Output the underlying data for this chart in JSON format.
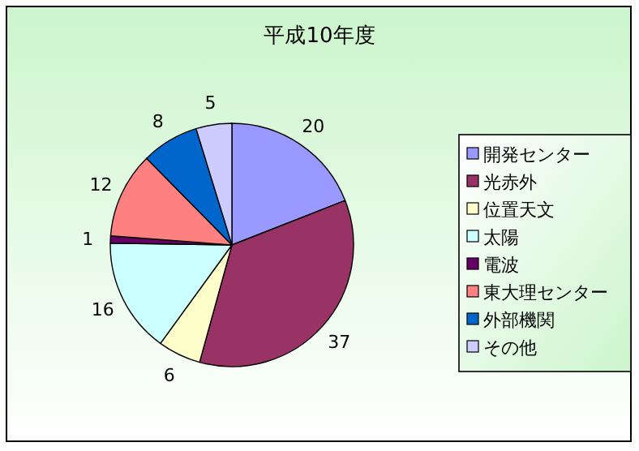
{
  "chart_data": {
    "type": "pie",
    "title": "平成10年度",
    "categories": [
      "開発センター",
      "光赤外",
      "位置天文",
      "太陽",
      "電波",
      "東大理センター",
      "外部機関",
      "その他"
    ],
    "values": [
      20,
      37,
      6,
      16,
      1,
      12,
      8,
      5
    ],
    "colors": [
      "#9999ff",
      "#993366",
      "#ffffcc",
      "#ccffff",
      "#660066",
      "#ff8080",
      "#0066cc",
      "#ccccff"
    ],
    "data_labels": true,
    "legend": "right"
  }
}
